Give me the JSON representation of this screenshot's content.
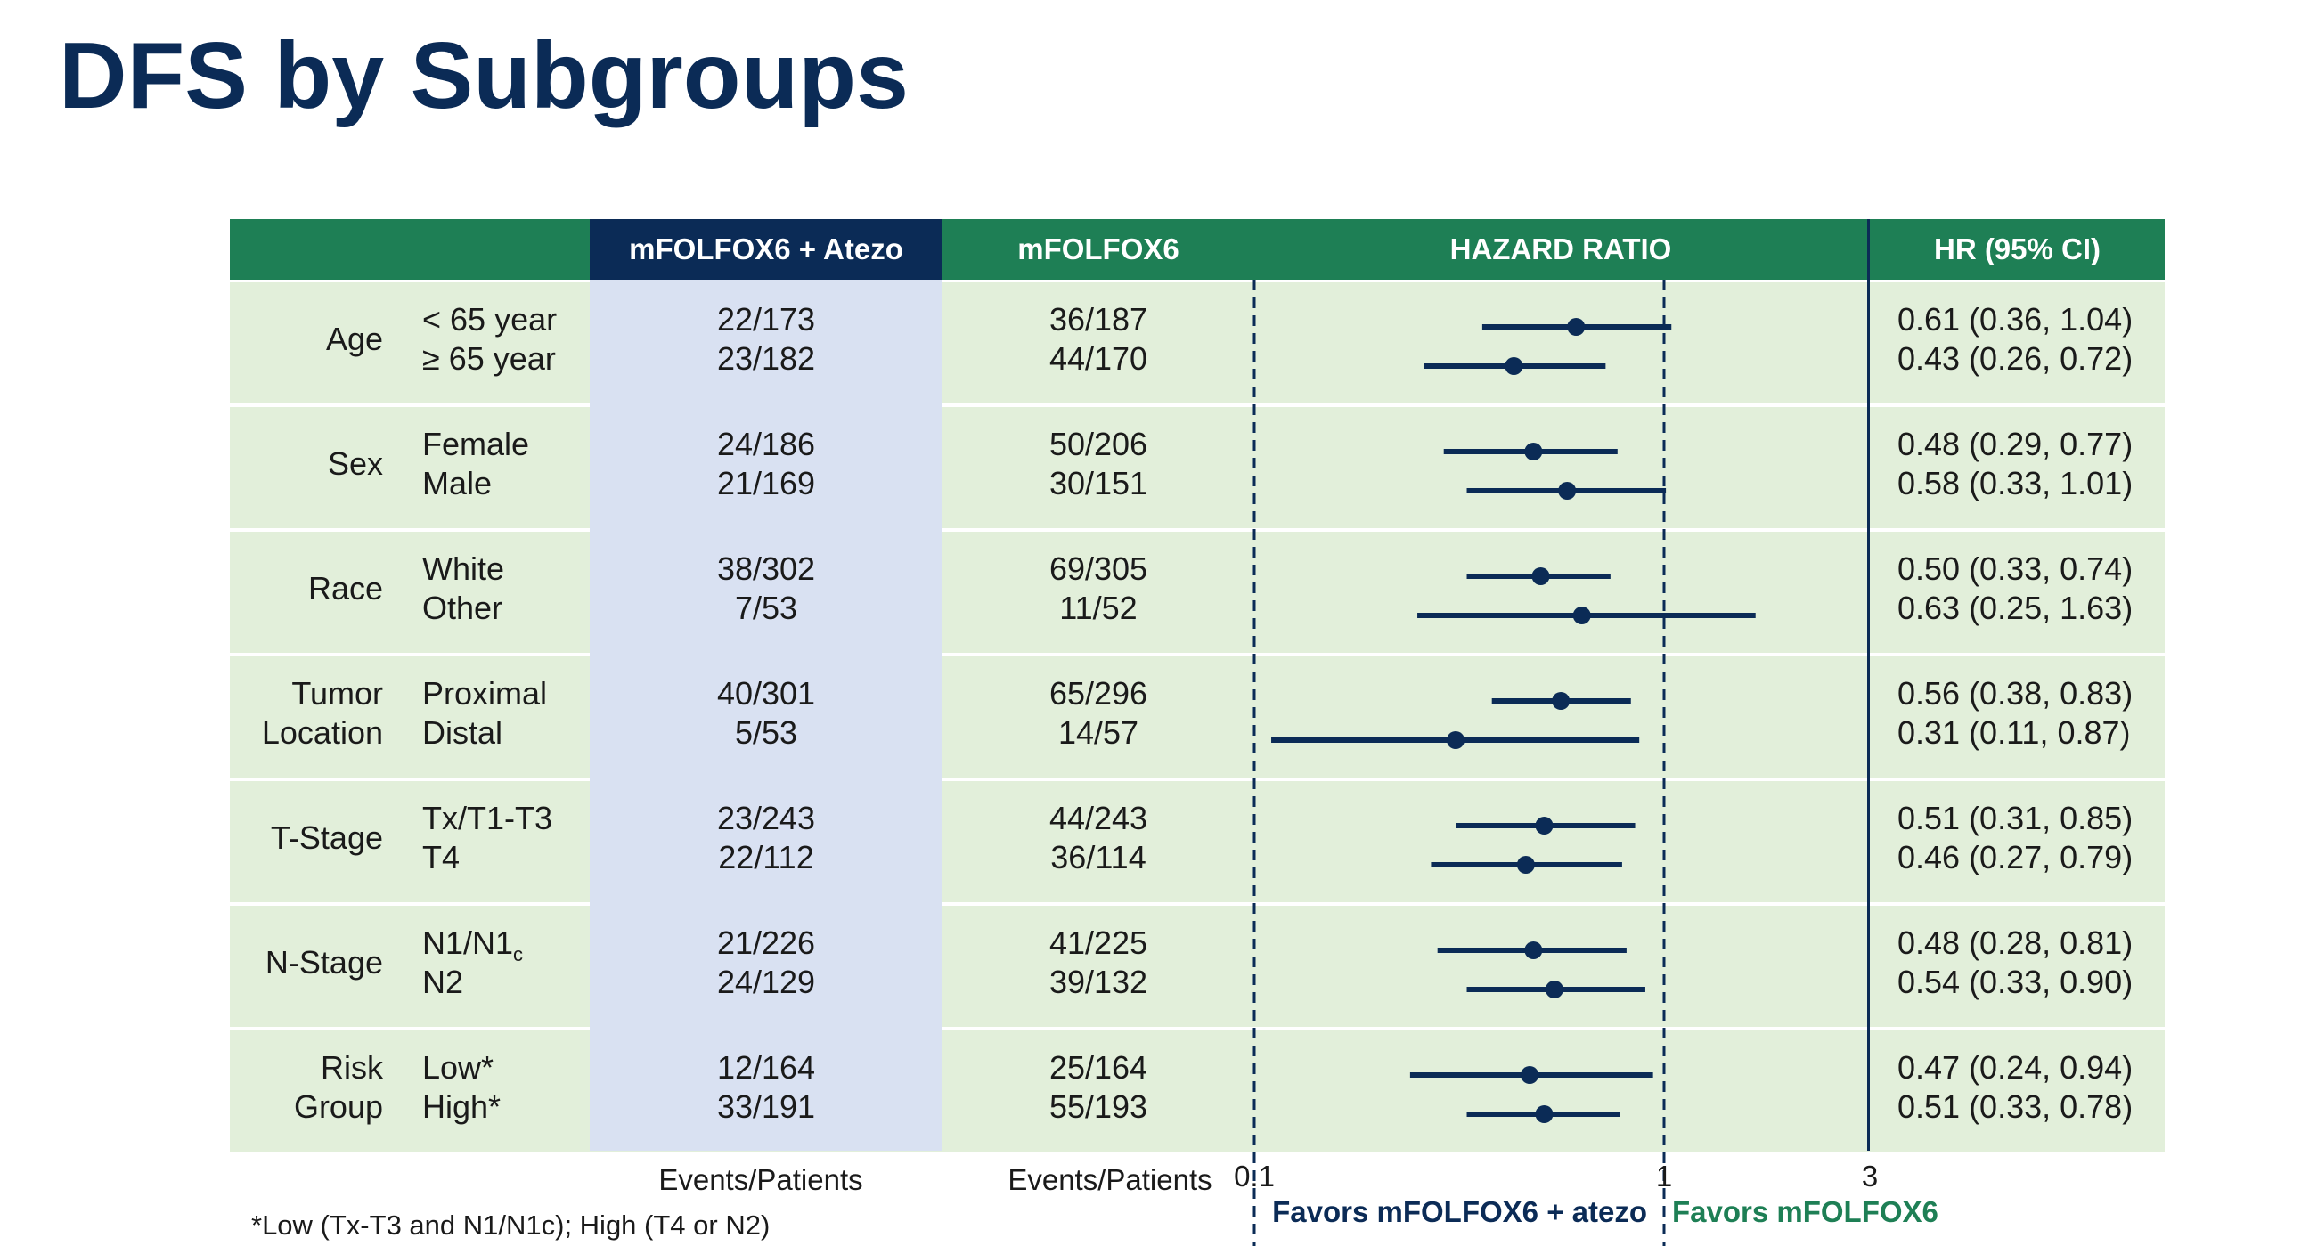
{
  "title": "DFS by Subgroups",
  "header": {
    "atezo": "mFOLFOX6 + Atezo",
    "control": "mFOLFOX6",
    "hazard_ratio": "HAZARD RATIO",
    "hr_ci": "HR (95% CI)"
  },
  "colors": {
    "navy": "#0b2b56",
    "green_header": "#1e7f55",
    "row_green": "#e2efda",
    "atezo_blue": "#d9e1f2",
    "favors_green": "#1e7f55"
  },
  "groups": [
    {
      "label_lines": [
        "Age"
      ],
      "rows": [
        {
          "sub": "< 65 year",
          "atezo": "22/173",
          "control": "36/187",
          "hr_text": "0.61 (0.36, 1.04)"
        },
        {
          "sub": "≥ 65 year",
          "atezo": "23/182",
          "control": "44/170",
          "hr_text": "0.43 (0.26, 0.72)"
        }
      ]
    },
    {
      "label_lines": [
        "Sex"
      ],
      "rows": [
        {
          "sub": "Female",
          "atezo": "24/186",
          "control": "50/206",
          "hr_text": "0.48 (0.29, 0.77)"
        },
        {
          "sub": "Male",
          "atezo": "21/169",
          "control": "30/151",
          "hr_text": "0.58 (0.33, 1.01)"
        }
      ]
    },
    {
      "label_lines": [
        "Race"
      ],
      "rows": [
        {
          "sub": "White",
          "atezo": "38/302",
          "control": "69/305",
          "hr_text": "0.50 (0.33, 0.74)"
        },
        {
          "sub": "Other",
          "atezo": "7/53",
          "control": "11/52",
          "hr_text": "0.63 (0.25, 1.63)"
        }
      ]
    },
    {
      "label_lines": [
        "Tumor",
        "Location"
      ],
      "rows": [
        {
          "sub": "Proximal",
          "atezo": "40/301",
          "control": "65/296",
          "hr_text": "0.56 (0.38, 0.83)"
        },
        {
          "sub": "Distal",
          "atezo": "5/53",
          "control": "14/57",
          "hr_text": "0.31 (0.11, 0.87)"
        }
      ]
    },
    {
      "label_lines": [
        "T-Stage"
      ],
      "rows": [
        {
          "sub": "Tx/T1-T3",
          "atezo": "23/243",
          "control": "44/243",
          "hr_text": "0.51 (0.31, 0.85)"
        },
        {
          "sub": "T4",
          "atezo": "22/112",
          "control": "36/114",
          "hr_text": "0.46 (0.27, 0.79)"
        }
      ]
    },
    {
      "label_lines": [
        "N-Stage"
      ],
      "rows": [
        {
          "sub": "N1/N1",
          "sub_subscript": "c",
          "atezo": "21/226",
          "control": "41/225",
          "hr_text": "0.48 (0.28, 0.81)"
        },
        {
          "sub": "N2",
          "atezo": "24/129",
          "control": "39/132",
          "hr_text": "0.54 (0.33, 0.90)"
        }
      ]
    },
    {
      "label_lines": [
        "Risk",
        "Group"
      ],
      "rows": [
        {
          "sub": "Low*",
          "atezo": "12/164",
          "control": "25/164",
          "hr_text": "0.47 (0.24, 0.94)"
        },
        {
          "sub": "High*",
          "atezo": "33/191",
          "control": "55/193",
          "hr_text": "0.51 (0.33, 0.78)"
        }
      ]
    }
  ],
  "footer": {
    "events_patients_atezo": "Events/Patients",
    "events_patients_control": "Events/Patients",
    "favors_atezo": "Favors mFOLFOX6 + atezo",
    "favors_control": "Favors mFOLFOX6",
    "footnote": "*Low (Tx-T3 and N1/N1c); High (T4 or N2)"
  },
  "chart_data": {
    "type": "forest",
    "x_scale": "log",
    "xlim": [
      0.1,
      3
    ],
    "x_ticks": [
      "0.1",
      "1",
      "3"
    ],
    "reference_lines": [
      0.1,
      1
    ],
    "series": [
      {
        "subgroup": "< 65 year",
        "hr": 0.61,
        "lo": 0.36,
        "hi": 1.04
      },
      {
        "subgroup": "≥ 65 year",
        "hr": 0.43,
        "lo": 0.26,
        "hi": 0.72
      },
      {
        "subgroup": "Female",
        "hr": 0.48,
        "lo": 0.29,
        "hi": 0.77
      },
      {
        "subgroup": "Male",
        "hr": 0.58,
        "lo": 0.33,
        "hi": 1.01
      },
      {
        "subgroup": "White",
        "hr": 0.5,
        "lo": 0.33,
        "hi": 0.74
      },
      {
        "subgroup": "Other",
        "hr": 0.63,
        "lo": 0.25,
        "hi": 1.63
      },
      {
        "subgroup": "Proximal",
        "hr": 0.56,
        "lo": 0.38,
        "hi": 0.83
      },
      {
        "subgroup": "Distal",
        "hr": 0.31,
        "lo": 0.11,
        "hi": 0.87
      },
      {
        "subgroup": "Tx/T1-T3",
        "hr": 0.51,
        "lo": 0.31,
        "hi": 0.85
      },
      {
        "subgroup": "T4",
        "hr": 0.46,
        "lo": 0.27,
        "hi": 0.79
      },
      {
        "subgroup": "N1/N1c",
        "hr": 0.48,
        "lo": 0.28,
        "hi": 0.81
      },
      {
        "subgroup": "N2",
        "hr": 0.54,
        "lo": 0.33,
        "hi": 0.9
      },
      {
        "subgroup": "Low*",
        "hr": 0.47,
        "lo": 0.24,
        "hi": 0.94
      },
      {
        "subgroup": "High*",
        "hr": 0.51,
        "lo": 0.33,
        "hi": 0.78
      }
    ]
  }
}
